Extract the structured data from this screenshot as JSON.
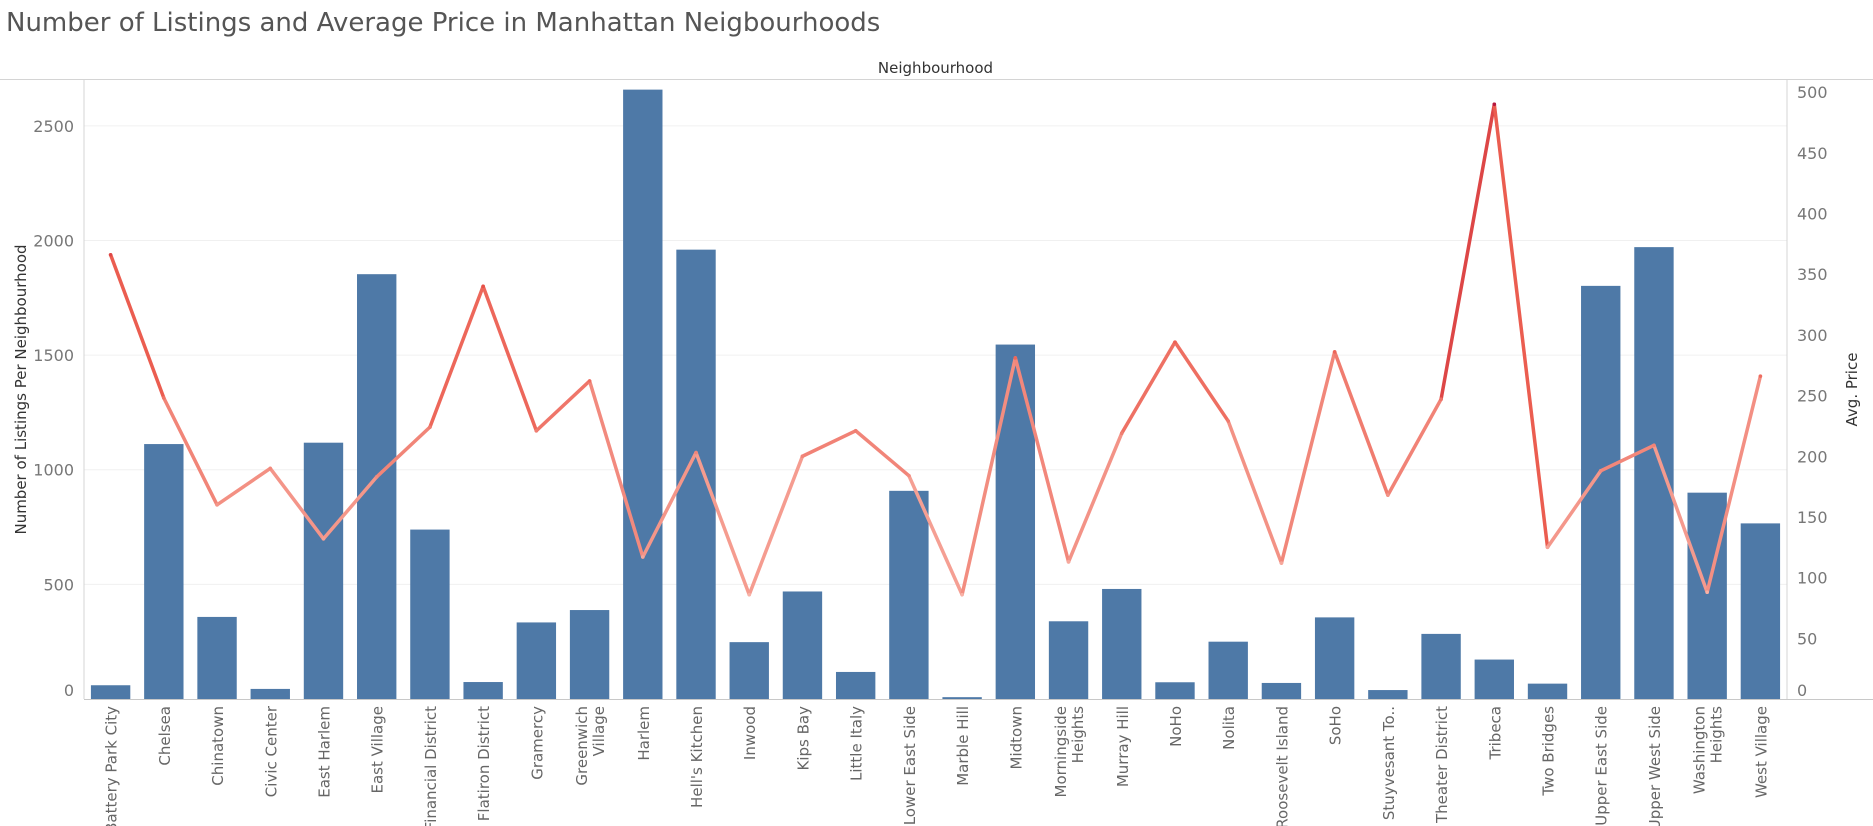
{
  "title": "Number of Listings and Average Price in Manhattan Neigbourhoods",
  "chart_data": {
    "type": "bar",
    "title": "Number of Listings and Average Price in Manhattan Neigbourhoods",
    "column_header": "Neighbourhood",
    "ylabel": "Number of Listings Per Neighbourhood",
    "y2label": "Avg. Price",
    "ylim": [
      0,
      2700
    ],
    "y2lim": [
      0,
      510
    ],
    "yticks": [
      0,
      500,
      1000,
      1500,
      2000,
      2500
    ],
    "y2ticks": [
      0,
      50,
      100,
      150,
      200,
      250,
      300,
      350,
      400,
      450,
      500
    ],
    "grid": true,
    "bar_color": "#4e79a7",
    "line_color_low": "#f8b2a6",
    "line_color_mid": "#ea5548",
    "line_color_high": "#b5173f",
    "categories": [
      "Battery Park City",
      "Chelsea",
      "Chinatown",
      "Civic Center",
      "East Harlem",
      "East Village",
      "Financial District",
      "Flatiron District",
      "Gramercy",
      "Greenwich Village",
      "Harlem",
      "Hell's Kitchen",
      "Inwood",
      "Kips Bay",
      "Little Italy",
      "Lower East Side",
      "Marble Hill",
      "Midtown",
      "Morningside Heights",
      "Murray Hill",
      "NoHo",
      "Nolita",
      "Roosevelt Island",
      "SoHo",
      "Stuyvesant To..",
      "Theater District",
      "Tribeca",
      "Two Bridges",
      "Upper East Side",
      "Upper West Side",
      "Washington Heights",
      "West Village"
    ],
    "category_lines": [
      [
        "Battery Park City"
      ],
      [
        "Chelsea"
      ],
      [
        "Chinatown"
      ],
      [
        "Civic Center"
      ],
      [
        "East Harlem"
      ],
      [
        "East Village"
      ],
      [
        "Financial District"
      ],
      [
        "Flatiron District"
      ],
      [
        "Gramercy"
      ],
      [
        "Greenwich",
        "Village"
      ],
      [
        "Harlem"
      ],
      [
        "Hell's Kitchen"
      ],
      [
        "Inwood"
      ],
      [
        "Kips Bay"
      ],
      [
        "Little Italy"
      ],
      [
        "Lower East Side"
      ],
      [
        "Marble Hill"
      ],
      [
        "Midtown"
      ],
      [
        "Morningside",
        "Heights"
      ],
      [
        "Murray Hill"
      ],
      [
        "NoHo"
      ],
      [
        "Nolita"
      ],
      [
        "Roosevelt Island"
      ],
      [
        "SoHo"
      ],
      [
        "Stuyvesant To.."
      ],
      [
        "Theater District"
      ],
      [
        "Tribeca"
      ],
      [
        "Two Bridges"
      ],
      [
        "Upper East Side"
      ],
      [
        "Upper West Side"
      ],
      [
        "Washington",
        "Heights"
      ],
      [
        "West Village"
      ]
    ],
    "series": [
      {
        "type": "bar",
        "axis": "left",
        "values": [
          60,
          1112,
          358,
          44,
          1118,
          1853,
          739,
          74,
          334,
          388,
          2658,
          1960,
          248,
          469,
          118,
          908,
          8,
          1546,
          339,
          480,
          73,
          250,
          70,
          356,
          39,
          284,
          172,
          67,
          1802,
          1971,
          900,
          766
        ]
      },
      {
        "type": "line",
        "axis": "right",
        "values": [
          366,
          248,
          160,
          190,
          132,
          183,
          224,
          340,
          221,
          262,
          117,
          203,
          86,
          200,
          221,
          184,
          86,
          281,
          113,
          219,
          294,
          229,
          112,
          286,
          168,
          247,
          490,
          125,
          188,
          209,
          88,
          266
        ]
      }
    ]
  }
}
